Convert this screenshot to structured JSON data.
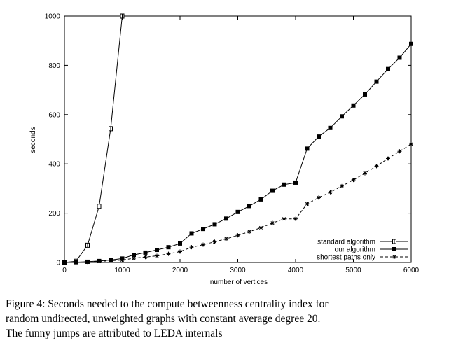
{
  "chart_data": {
    "type": "line",
    "title": "",
    "xlabel": "number of vertices",
    "ylabel": "seconds",
    "xlim": [
      0,
      6000
    ],
    "ylim": [
      0,
      1000
    ],
    "xticks": [
      0,
      1000,
      2000,
      3000,
      4000,
      5000,
      6000
    ],
    "yticks": [
      0,
      200,
      400,
      600,
      800,
      1000
    ],
    "grid": false,
    "legend_position": "bottom-right",
    "series": [
      {
        "name": "standard algorithm",
        "marker": "box-error",
        "dash": "solid",
        "x": [
          0,
          200,
          400,
          600,
          800,
          1000
        ],
        "y": [
          0,
          5,
          70,
          228,
          543,
          1000
        ]
      },
      {
        "name": "our algorithm",
        "marker": "filled-square",
        "dash": "solid",
        "x": [
          0,
          200,
          400,
          600,
          800,
          1000,
          1200,
          1400,
          1600,
          1800,
          2000,
          2200,
          2400,
          2600,
          2800,
          3000,
          3200,
          3400,
          3600,
          3800,
          4000,
          4200,
          4400,
          4600,
          4800,
          5000,
          5200,
          5400,
          5600,
          5800,
          6000
        ],
        "y": [
          0,
          1,
          3,
          6,
          10,
          16,
          31,
          40,
          51,
          62,
          77,
          118,
          136,
          155,
          178,
          205,
          229,
          256,
          291,
          316,
          324,
          462,
          511,
          546,
          593,
          637,
          682,
          734,
          785,
          831,
          887
        ]
      },
      {
        "name": "shortest paths only",
        "marker": "asterisk",
        "dash": "dashed",
        "x": [
          0,
          200,
          400,
          600,
          800,
          1000,
          1200,
          1400,
          1600,
          1800,
          2000,
          2200,
          2400,
          2600,
          2800,
          3000,
          3200,
          3400,
          3600,
          3800,
          4000,
          4200,
          4400,
          4600,
          4800,
          5000,
          5200,
          5400,
          5600,
          5800,
          6000
        ],
        "y": [
          0,
          1,
          2,
          4,
          7,
          10,
          17,
          22,
          27,
          35,
          44,
          62,
          72,
          84,
          96,
          110,
          125,
          141,
          160,
          177,
          177,
          238,
          263,
          285,
          310,
          335,
          362,
          391,
          422,
          451,
          480
        ]
      }
    ]
  },
  "caption": {
    "line1": "Figure 4: Seconds needed to the compute betweenness centrality index for",
    "line2": "random undirected, unweighted graphs with constant average degree 20.",
    "line3": "The funny jumps are attributed to LEDA internals"
  }
}
